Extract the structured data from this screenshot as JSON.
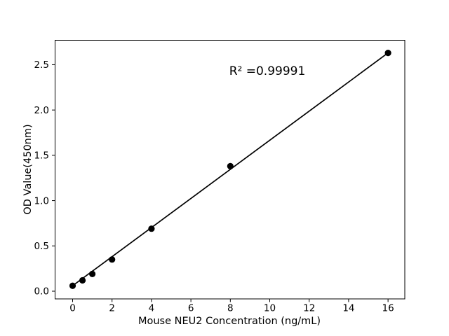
{
  "chart_data": {
    "type": "scatter",
    "title": "",
    "xlabel": "Mouse NEU2 Concentration (ng/mL)",
    "ylabel": "OD Value(450nm)",
    "annotation": "R² =0.99991",
    "x": [
      0,
      0.5,
      1,
      2,
      4,
      8,
      16
    ],
    "y": [
      0.06,
      0.12,
      0.19,
      0.35,
      0.69,
      1.38,
      2.63
    ],
    "fit_line": {
      "x": [
        0,
        16
      ],
      "y": [
        0.06,
        2.63
      ]
    },
    "xticks": [
      0,
      2,
      4,
      6,
      8,
      10,
      12,
      14,
      16
    ],
    "xticklabels": [
      "0",
      "2",
      "4",
      "6",
      "8",
      "10",
      "12",
      "14",
      "16"
    ],
    "yticks": [
      0,
      0.5,
      1,
      1.5,
      2,
      2.5
    ],
    "yticklabels": [
      "0.0",
      "0.5",
      "1.0",
      "1.5",
      "2.0",
      "2.5"
    ],
    "xlim": [
      -0.89,
      16.85
    ],
    "ylim": [
      -0.085,
      2.77
    ],
    "grid": false,
    "legend": "none",
    "marker_color": "#000000",
    "line_color": "#000000",
    "axis_color": "#000000",
    "background_color": "#ffffff"
  }
}
